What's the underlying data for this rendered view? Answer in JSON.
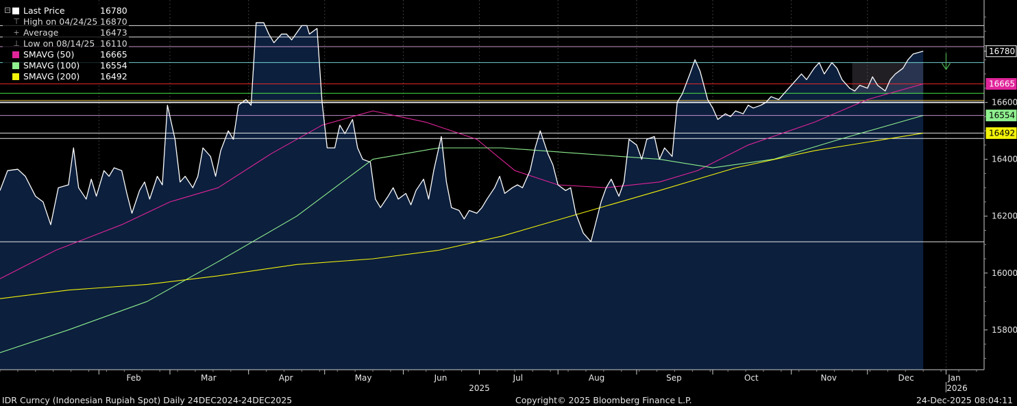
{
  "legend": {
    "last_price": {
      "label": "Last Price",
      "value": "16780",
      "color": "#ffffff"
    },
    "high": {
      "label": "High on 04/24/25",
      "value": "16870"
    },
    "average": {
      "label": "Average",
      "value": "16473"
    },
    "low": {
      "label": "Low on 08/14/25",
      "value": "16110"
    },
    "sma50": {
      "label": "SMAVG (50)",
      "value": "16665",
      "color": "#e0249a"
    },
    "sma100": {
      "label": "SMAVG (100)",
      "value": "16554",
      "color": "#8ff08f"
    },
    "sma200": {
      "label": "SMAVG (200)",
      "value": "16492",
      "color": "#f2f20a"
    }
  },
  "footer": {
    "left": "IDR Curncy (Indonesian Rupiah Spot) Daily 24DEC2024-24DEC2025",
    "center": "Copyright© 2025 Bloomberg Finance L.P.",
    "right": "24-Dec-2025 08:04:11"
  },
  "chart_data": {
    "type": "line",
    "title": "",
    "x_start": "2024-12-24",
    "x_end": "2026-01-16",
    "ylim": [
      15660,
      16960
    ],
    "y_ticks": [
      15800,
      16000,
      16200,
      16400,
      16600,
      16780
    ],
    "month_ticks": [
      {
        "label": "Feb",
        "date": "2025-02-01"
      },
      {
        "label": "Mar",
        "date": "2025-03-01"
      },
      {
        "label": "Apr",
        "date": "2025-04-01"
      },
      {
        "label": "May",
        "date": "2025-05-01"
      },
      {
        "label": "Jun",
        "date": "2025-06-01"
      },
      {
        "label": "Jul",
        "date": "2025-07-01"
      },
      {
        "label": "Aug",
        "date": "2025-08-01"
      },
      {
        "label": "Sep",
        "date": "2025-09-01"
      },
      {
        "label": "Oct",
        "date": "2025-10-01"
      },
      {
        "label": "Nov",
        "date": "2025-11-01"
      },
      {
        "label": "Dec",
        "date": "2025-12-01"
      },
      {
        "label": "Jan",
        "date": "2026-01-01"
      }
    ],
    "year_labels": [
      {
        "label": "2025",
        "date": "2025-07-01"
      },
      {
        "label": "2026",
        "date": "2026-01-01"
      }
    ],
    "reference_lines": [
      {
        "name": "High",
        "value": 16870,
        "color": "#ffffff"
      },
      {
        "name": "Average",
        "value": 16473,
        "color": "#ffffff"
      },
      {
        "name": "Low",
        "value": 16110,
        "color": "#ffffff"
      },
      {
        "name": "SMAVG (50)",
        "value": 16665,
        "color": "#ff2a2a"
      },
      {
        "name": "SMAVG (100)",
        "value": 16554,
        "color": "#d9a0e0"
      },
      {
        "name": "SMAVG (200)",
        "value": 16492,
        "color": "#ffffff"
      },
      {
        "name": "",
        "value": 16830,
        "color": "#ffffff"
      },
      {
        "name": "",
        "value": 16796,
        "color": "#e0a8e0"
      },
      {
        "name": "",
        "value": 16740,
        "color": "#7fe8e8"
      },
      {
        "name": "",
        "value": 16632,
        "color": "#4cff4c"
      },
      {
        "name": "",
        "value": 16607,
        "color": "#f2c94c"
      },
      {
        "name": "",
        "value": 16600,
        "color": "#ffffff"
      }
    ],
    "axis_badges": [
      {
        "value": 16780,
        "label": "16780",
        "bg": "#000000",
        "fg": "#ffffff",
        "border": "#ffffff"
      },
      {
        "value": 16665,
        "label": "16665",
        "bg": "#e0249a",
        "fg": "#ffffff",
        "border": "#e0249a"
      },
      {
        "value": 16554,
        "label": "16554",
        "bg": "#8ff08f",
        "fg": "#000000",
        "border": "#8ff08f"
      },
      {
        "value": 16492,
        "label": "16492",
        "bg": "#f2f20a",
        "fg": "#000000",
        "border": "#f2f20a"
      }
    ],
    "series": [
      {
        "name": "Last Price",
        "color": "#ffffff",
        "area_fill": "#0c1f3d",
        "points": [
          [
            "2024-12-24",
            16290
          ],
          [
            "2024-12-27",
            16360
          ],
          [
            "2024-12-31",
            16365
          ],
          [
            "2025-01-03",
            16340
          ],
          [
            "2025-01-07",
            16270
          ],
          [
            "2025-01-10",
            16250
          ],
          [
            "2025-01-13",
            16170
          ],
          [
            "2025-01-16",
            16300
          ],
          [
            "2025-01-20",
            16310
          ],
          [
            "2025-01-22",
            16440
          ],
          [
            "2025-01-24",
            16300
          ],
          [
            "2025-01-27",
            16260
          ],
          [
            "2025-01-29",
            16330
          ],
          [
            "2025-01-31",
            16270
          ],
          [
            "2025-02-03",
            16360
          ],
          [
            "2025-02-05",
            16340
          ],
          [
            "2025-02-07",
            16370
          ],
          [
            "2025-02-10",
            16360
          ],
          [
            "2025-02-12",
            16280
          ],
          [
            "2025-02-14",
            16210
          ],
          [
            "2025-02-17",
            16290
          ],
          [
            "2025-02-19",
            16320
          ],
          [
            "2025-02-21",
            16260
          ],
          [
            "2025-02-24",
            16340
          ],
          [
            "2025-02-26",
            16310
          ],
          [
            "2025-02-28",
            16590
          ],
          [
            "2025-03-03",
            16470
          ],
          [
            "2025-03-05",
            16320
          ],
          [
            "2025-03-07",
            16340
          ],
          [
            "2025-03-10",
            16300
          ],
          [
            "2025-03-12",
            16340
          ],
          [
            "2025-03-14",
            16440
          ],
          [
            "2025-03-17",
            16410
          ],
          [
            "2025-03-19",
            16340
          ],
          [
            "2025-03-21",
            16430
          ],
          [
            "2025-03-24",
            16500
          ],
          [
            "2025-03-26",
            16470
          ],
          [
            "2025-03-28",
            16590
          ],
          [
            "2025-03-31",
            16610
          ],
          [
            "2025-04-02",
            16590
          ],
          [
            "2025-04-04",
            16880
          ],
          [
            "2025-04-07",
            16880
          ],
          [
            "2025-04-09",
            16840
          ],
          [
            "2025-04-11",
            16810
          ],
          [
            "2025-04-14",
            16840
          ],
          [
            "2025-04-16",
            16840
          ],
          [
            "2025-04-18",
            16820
          ],
          [
            "2025-04-22",
            16870
          ],
          [
            "2025-04-24",
            16870
          ],
          [
            "2025-04-25",
            16840
          ],
          [
            "2025-04-28",
            16860
          ],
          [
            "2025-04-30",
            16600
          ],
          [
            "2025-05-02",
            16440
          ],
          [
            "2025-05-05",
            16440
          ],
          [
            "2025-05-07",
            16520
          ],
          [
            "2025-05-09",
            16490
          ],
          [
            "2025-05-12",
            16540
          ],
          [
            "2025-05-14",
            16440
          ],
          [
            "2025-05-16",
            16400
          ],
          [
            "2025-05-19",
            16390
          ],
          [
            "2025-05-21",
            16260
          ],
          [
            "2025-05-23",
            16230
          ],
          [
            "2025-05-26",
            16270
          ],
          [
            "2025-05-28",
            16300
          ],
          [
            "2025-05-30",
            16260
          ],
          [
            "2025-06-02",
            16280
          ],
          [
            "2025-06-04",
            16240
          ],
          [
            "2025-06-06",
            16290
          ],
          [
            "2025-06-09",
            16330
          ],
          [
            "2025-06-11",
            16260
          ],
          [
            "2025-06-13",
            16360
          ],
          [
            "2025-06-16",
            16480
          ],
          [
            "2025-06-18",
            16320
          ],
          [
            "2025-06-20",
            16230
          ],
          [
            "2025-06-23",
            16220
          ],
          [
            "2025-06-25",
            16190
          ],
          [
            "2025-06-27",
            16220
          ],
          [
            "2025-06-30",
            16210
          ],
          [
            "2025-07-02",
            16230
          ],
          [
            "2025-07-04",
            16260
          ],
          [
            "2025-07-07",
            16300
          ],
          [
            "2025-07-09",
            16340
          ],
          [
            "2025-07-11",
            16280
          ],
          [
            "2025-07-14",
            16300
          ],
          [
            "2025-07-16",
            16310
          ],
          [
            "2025-07-18",
            16300
          ],
          [
            "2025-07-21",
            16360
          ],
          [
            "2025-07-23",
            16440
          ],
          [
            "2025-07-25",
            16500
          ],
          [
            "2025-07-28",
            16420
          ],
          [
            "2025-07-30",
            16380
          ],
          [
            "2025-08-01",
            16310
          ],
          [
            "2025-08-04",
            16290
          ],
          [
            "2025-08-06",
            16300
          ],
          [
            "2025-08-08",
            16210
          ],
          [
            "2025-08-11",
            16140
          ],
          [
            "2025-08-14",
            16110
          ],
          [
            "2025-08-18",
            16250
          ],
          [
            "2025-08-20",
            16300
          ],
          [
            "2025-08-22",
            16330
          ],
          [
            "2025-08-25",
            16270
          ],
          [
            "2025-08-27",
            16320
          ],
          [
            "2025-08-29",
            16470
          ],
          [
            "2025-09-01",
            16450
          ],
          [
            "2025-09-03",
            16400
          ],
          [
            "2025-09-05",
            16470
          ],
          [
            "2025-09-08",
            16480
          ],
          [
            "2025-09-10",
            16400
          ],
          [
            "2025-09-12",
            16440
          ],
          [
            "2025-09-15",
            16410
          ],
          [
            "2025-09-17",
            16600
          ],
          [
            "2025-09-19",
            16630
          ],
          [
            "2025-09-22",
            16700
          ],
          [
            "2025-09-24",
            16750
          ],
          [
            "2025-09-26",
            16710
          ],
          [
            "2025-09-29",
            16610
          ],
          [
            "2025-10-01",
            16580
          ],
          [
            "2025-10-03",
            16540
          ],
          [
            "2025-10-06",
            16560
          ],
          [
            "2025-10-08",
            16550
          ],
          [
            "2025-10-10",
            16570
          ],
          [
            "2025-10-13",
            16560
          ],
          [
            "2025-10-15",
            16590
          ],
          [
            "2025-10-17",
            16580
          ],
          [
            "2025-10-20",
            16590
          ],
          [
            "2025-10-22",
            16600
          ],
          [
            "2025-10-24",
            16620
          ],
          [
            "2025-10-27",
            16610
          ],
          [
            "2025-10-29",
            16630
          ],
          [
            "2025-10-31",
            16650
          ],
          [
            "2025-11-03",
            16680
          ],
          [
            "2025-11-05",
            16700
          ],
          [
            "2025-11-07",
            16680
          ],
          [
            "2025-11-10",
            16720
          ],
          [
            "2025-11-12",
            16740
          ],
          [
            "2025-11-14",
            16700
          ],
          [
            "2025-11-17",
            16740
          ],
          [
            "2025-11-19",
            16720
          ],
          [
            "2025-11-21",
            16680
          ],
          [
            "2025-11-24",
            16650
          ],
          [
            "2025-11-26",
            16640
          ],
          [
            "2025-11-28",
            16660
          ],
          [
            "2025-12-01",
            16650
          ],
          [
            "2025-12-03",
            16690
          ],
          [
            "2025-12-05",
            16660
          ],
          [
            "2025-12-08",
            16640
          ],
          [
            "2025-12-10",
            16680
          ],
          [
            "2025-12-12",
            16700
          ],
          [
            "2025-12-15",
            16720
          ],
          [
            "2025-12-17",
            16750
          ],
          [
            "2025-12-19",
            16770
          ],
          [
            "2025-12-23",
            16780
          ]
        ]
      },
      {
        "name": "SMAVG (50)",
        "color": "#e0249a",
        "points": [
          [
            "2024-12-24",
            15980
          ],
          [
            "2025-01-15",
            16080
          ],
          [
            "2025-02-10",
            16170
          ],
          [
            "2025-03-01",
            16250
          ],
          [
            "2025-03-20",
            16300
          ],
          [
            "2025-04-10",
            16420
          ],
          [
            "2025-04-30",
            16520
          ],
          [
            "2025-05-20",
            16570
          ],
          [
            "2025-06-10",
            16530
          ],
          [
            "2025-06-30",
            16470
          ],
          [
            "2025-07-15",
            16360
          ],
          [
            "2025-08-01",
            16310
          ],
          [
            "2025-08-20",
            16300
          ],
          [
            "2025-09-10",
            16320
          ],
          [
            "2025-09-25",
            16360
          ],
          [
            "2025-10-15",
            16450
          ],
          [
            "2025-11-10",
            16530
          ],
          [
            "2025-12-01",
            16610
          ],
          [
            "2025-12-23",
            16665
          ]
        ]
      },
      {
        "name": "SMAVG (100)",
        "color": "#8ff08f",
        "points": [
          [
            "2024-12-24",
            15720
          ],
          [
            "2025-01-20",
            15800
          ],
          [
            "2025-02-20",
            15900
          ],
          [
            "2025-03-20",
            16040
          ],
          [
            "2025-04-20",
            16200
          ],
          [
            "2025-05-20",
            16400
          ],
          [
            "2025-06-15",
            16440
          ],
          [
            "2025-07-10",
            16440
          ],
          [
            "2025-08-10",
            16420
          ],
          [
            "2025-09-10",
            16400
          ],
          [
            "2025-10-01",
            16370
          ],
          [
            "2025-10-25",
            16400
          ],
          [
            "2025-11-20",
            16470
          ],
          [
            "2025-12-23",
            16554
          ]
        ]
      },
      {
        "name": "SMAVG (200)",
        "color": "#f2f20a",
        "points": [
          [
            "2024-12-24",
            15910
          ],
          [
            "2025-01-20",
            15940
          ],
          [
            "2025-02-20",
            15960
          ],
          [
            "2025-03-20",
            15990
          ],
          [
            "2025-04-20",
            16030
          ],
          [
            "2025-05-20",
            16050
          ],
          [
            "2025-06-15",
            16080
          ],
          [
            "2025-07-10",
            16130
          ],
          [
            "2025-08-10",
            16210
          ],
          [
            "2025-09-10",
            16290
          ],
          [
            "2025-10-10",
            16370
          ],
          [
            "2025-11-10",
            16430
          ],
          [
            "2025-12-23",
            16492
          ]
        ]
      }
    ],
    "highlight_box": {
      "x_start": "2025-11-25",
      "x_end": "2025-12-23",
      "y_low": 16630,
      "y_high": 16740
    },
    "forecast_marker": {
      "date": "2026-01-01",
      "value": 16740,
      "color": "#4caf50"
    }
  }
}
